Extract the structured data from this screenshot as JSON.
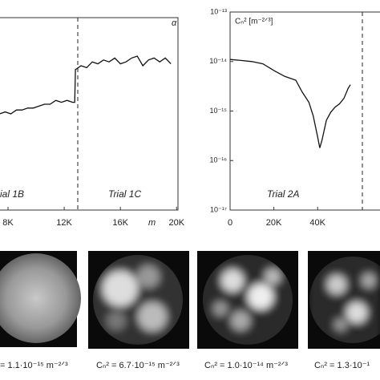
{
  "chart_data": [
    {
      "type": "line",
      "y_label": "α",
      "x_label": "m",
      "annotations": [
        "ial 1B",
        "Trial 1C"
      ],
      "x": [
        7400,
        7800,
        8200,
        8600,
        9000,
        9400,
        9800,
        10200,
        10600,
        11000,
        11400,
        11800,
        12200,
        12600,
        12750,
        12800,
        13200,
        13600,
        14000,
        14400,
        14800,
        15200,
        15600,
        16000,
        16400,
        16800,
        17200,
        17600,
        18000,
        18400,
        18800,
        19200,
        19600
      ],
      "series": [
        {
          "color": "#111111",
          "values": [
            0.5,
            0.51,
            0.5,
            0.52,
            0.52,
            0.53,
            0.53,
            0.54,
            0.55,
            0.55,
            0.57,
            0.56,
            0.57,
            0.56,
            0.56,
            0.73,
            0.75,
            0.74,
            0.77,
            0.76,
            0.78,
            0.77,
            0.79,
            0.76,
            0.77,
            0.79,
            0.8,
            0.75,
            0.78,
            0.79,
            0.77,
            0.79,
            0.76
          ]
        }
      ],
      "xlim": [
        7430,
        20100
      ],
      "ylim": [
        0,
        1
      ],
      "xticks": [
        {
          "value": 8000,
          "label": "8K"
        },
        {
          "value": 12000,
          "label": "12K"
        },
        {
          "value": 16000,
          "label": "16K"
        },
        {
          "value": 20000,
          "label": "20K"
        }
      ]
    },
    {
      "type": "line",
      "y_label": "Cₙ² [m⁻²ᐟ³]",
      "log_y": true,
      "annotations": [
        "Trial 2A"
      ],
      "x": [
        0,
        5000,
        10000,
        15000,
        20000,
        25000,
        30000,
        33000,
        36000,
        38000,
        40000,
        41000,
        42000,
        44000,
        46000,
        48000,
        50000,
        52000,
        54000,
        55000
      ],
      "series": [
        {
          "color": "#111111",
          "values": [
            1.1e-14,
            1.05e-14,
            1e-14,
            9e-15,
            6.6e-15,
            5e-15,
            4.2e-15,
            2.4e-15,
            1.5e-15,
            8e-16,
            3e-16,
            1.8e-16,
            2.6e-16,
            6.5e-16,
            9.5e-16,
            1.2e-15,
            1.4e-15,
            1.8e-15,
            2.9e-15,
            3.4e-15
          ]
        }
      ],
      "xlim": [
        0,
        68500
      ],
      "ylim": [
        1e-17,
        1e-13
      ],
      "xticks": [
        0,
        {
          "value": 20000,
          "label": "20K"
        },
        {
          "value": 40000,
          "label": "40K"
        }
      ],
      "yticks": [
        {
          "value": 1e-17,
          "label": "10⁻¹⁷"
        },
        {
          "value": 1e-16,
          "label": "10⁻¹⁶"
        },
        {
          "value": 1e-15,
          "label": "10⁻¹⁵"
        },
        {
          "value": 1e-14,
          "label": "10⁻¹⁴"
        },
        {
          "value": 1e-13,
          "label": "10⁻¹³"
        }
      ]
    }
  ],
  "panels": [
    {
      "caption": "= 1.1·10⁻¹⁵ m⁻²ᐟ³"
    },
    {
      "caption": "Cₙ² = 6.7·10⁻¹⁵ m⁻²ᐟ³"
    },
    {
      "caption": "Cₙ² = 1.0·10⁻¹⁴ m⁻²ᐟ³"
    },
    {
      "caption": "Cₙ² = 1.3·10⁻¹"
    }
  ]
}
